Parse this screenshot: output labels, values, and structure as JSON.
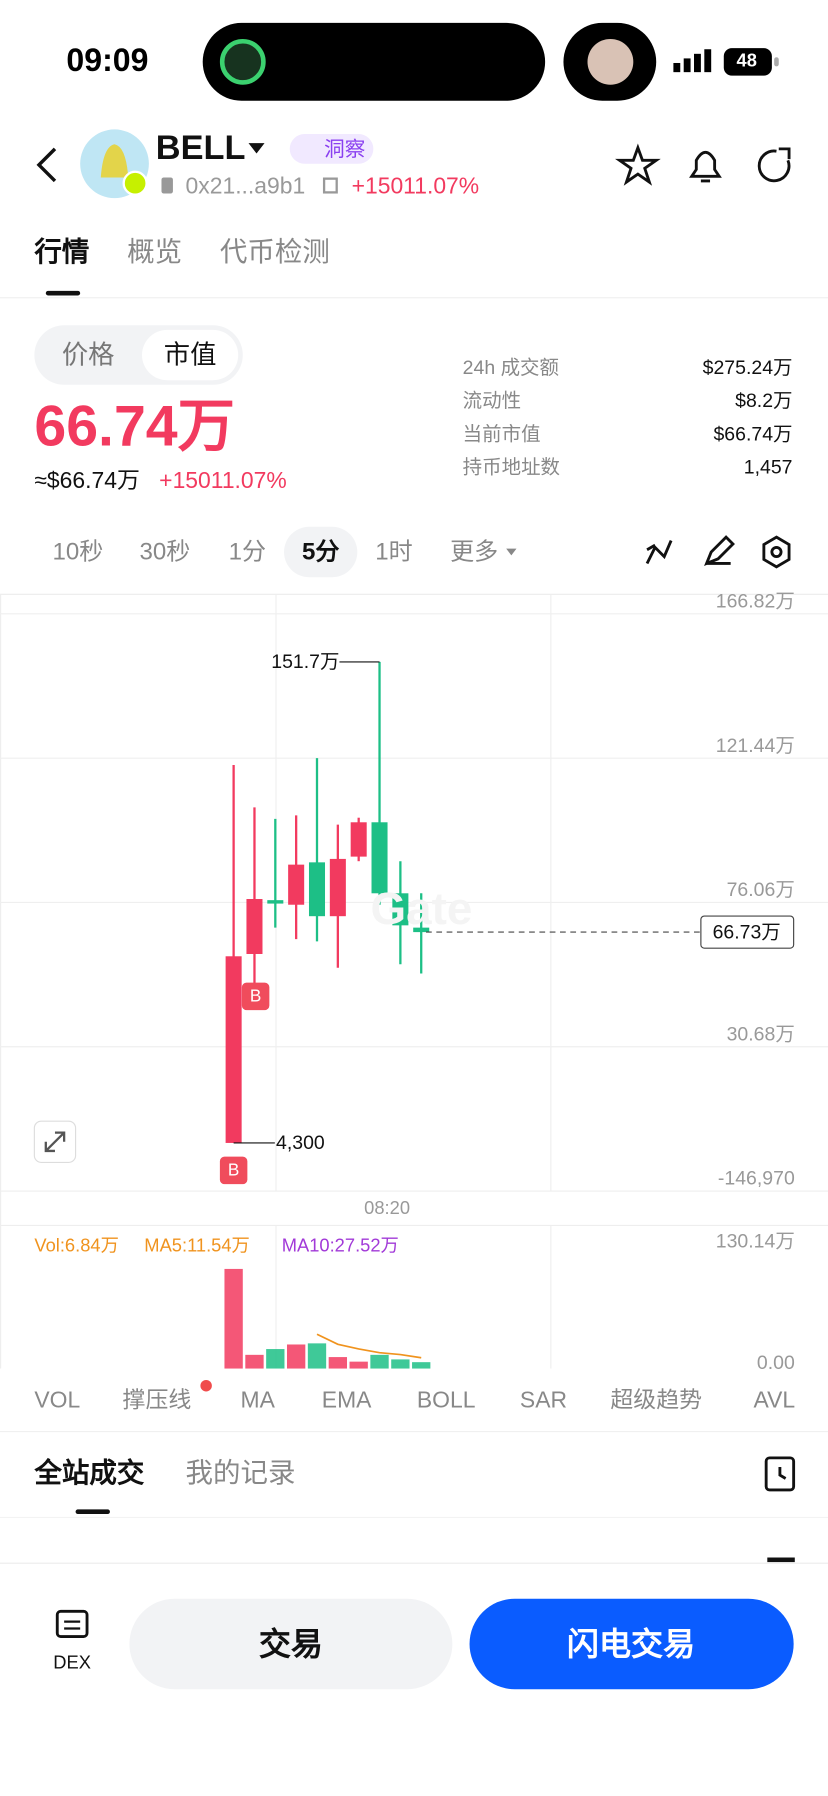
{
  "status_bar": {
    "time": "09:09",
    "battery": "48"
  },
  "header": {
    "title": "BELL",
    "badge": "洞察",
    "address": "0x21...a9b1",
    "change": "+15011.07%"
  },
  "tabs": [
    "行情",
    "概览",
    "代币检测"
  ],
  "toggle": [
    "价格",
    "市值"
  ],
  "market_cap": {
    "value": "66.74万",
    "usd": "≈$66.74万",
    "change": "+15011.07%"
  },
  "stats": [
    {
      "label": "24h 成交额",
      "value": "$275.24万"
    },
    {
      "label": "流动性",
      "value": "$8.2万"
    },
    {
      "label": "当前市值",
      "value": "$66.74万"
    },
    {
      "label": "持币地址数",
      "value": "1,457"
    }
  ],
  "intervals": [
    "10秒",
    "30秒",
    "1分",
    "5分",
    "1时",
    "更多"
  ],
  "chart": {
    "type": "candlestick",
    "up_color": "#f23a5f",
    "down_color": "#1dbf86",
    "grid": true,
    "ylim": [
      -146970,
      1668200
    ],
    "yticks": [
      {
        "value": -146970,
        "label": "-146,970"
      },
      {
        "value": 306800,
        "label": "30.68万"
      },
      {
        "value": 760600,
        "label": "76.06万"
      },
      {
        "value": 1214400,
        "label": "121.44万"
      },
      {
        "value": 1668200,
        "label": "166.82万"
      }
    ],
    "candles": [
      {
        "open": 4300,
        "high": 1192800,
        "low": 4300,
        "close": 591300
      },
      {
        "open": 598500,
        "high": 1059500,
        "low": 447300,
        "close": 771400
      },
      {
        "open": 767800,
        "high": 1023500,
        "low": 681400,
        "close": 757000
      },
      {
        "open": 753400,
        "high": 1034300,
        "low": 645300,
        "close": 879500
      },
      {
        "open": 886700,
        "high": 1214400,
        "low": 638100,
        "close": 717400
      },
      {
        "open": 717400,
        "high": 1005500,
        "low": 555300,
        "close": 897500
      },
      {
        "open": 904700,
        "high": 1027100,
        "low": 890300,
        "close": 1012700
      },
      {
        "open": 1012700,
        "high": 1517000,
        "low": 753400,
        "close": 789400
      },
      {
        "open": 789400,
        "high": 890300,
        "low": 566100,
        "close": 688600
      },
      {
        "open": 681400,
        "high": 789400,
        "low": 537300,
        "close": 667300
      }
    ],
    "annotations": [
      {
        "value": 1517000,
        "label": "151.7万"
      },
      {
        "value": 4300,
        "label": "4,300"
      }
    ],
    "last_price": {
      "value": 667300,
      "label": "66.73万"
    },
    "markers": [
      "B",
      "B"
    ],
    "x_label": "08:20",
    "watermark": "Gate"
  },
  "volume": {
    "type": "bar",
    "ylim": [
      0,
      1301400
    ],
    "yticks": [
      {
        "value": 0,
        "label": "0.00"
      },
      {
        "value": 1301400,
        "label": "130.14万"
      }
    ],
    "values": [
      1068000,
      147000,
      209000,
      258000,
      270000,
      123000,
      74000,
      147000,
      98000,
      68400
    ],
    "ma5": [
      null,
      null,
      null,
      null,
      368000,
      260000,
      210000,
      170000,
      150000,
      115400
    ],
    "ma5_color": "#f0931e",
    "legend": [
      "Vol:6.84万",
      "MA5:11.54万",
      "MA10:27.52万"
    ]
  },
  "indicators": [
    "VOL",
    "撑压线",
    "MA",
    "EMA",
    "BOLL",
    "SAR",
    "超级趋势",
    "AVL"
  ],
  "trade_tabs": [
    "全站成交",
    "我的记录"
  ],
  "bottom": {
    "dex": "DEX",
    "trade": "交易",
    "flash": "闪电交易"
  }
}
